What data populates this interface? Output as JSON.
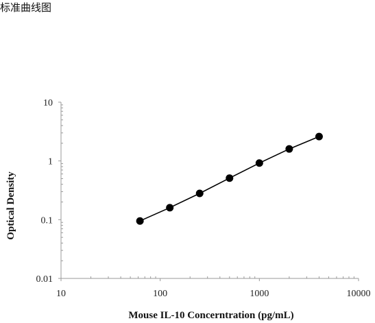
{
  "caption": "标准曲线图",
  "chart_data": {
    "type": "scatter",
    "title": "",
    "xlabel": "Mouse IL-10 Concerntration (pg/mL)",
    "ylabel": "Optical Density",
    "x_scale": "log",
    "y_scale": "log",
    "xlim": [
      10,
      10000
    ],
    "ylim": [
      0.01,
      10
    ],
    "x_ticks": [
      "10",
      "100",
      "1000",
      "10000"
    ],
    "y_ticks": [
      "0.01",
      "0.1",
      "1",
      "10"
    ],
    "grid": false,
    "trendline": true,
    "series": [
      {
        "x": [
          62.5,
          125,
          250,
          500,
          1000,
          2000,
          4000
        ],
        "y": [
          0.095,
          0.16,
          0.28,
          0.51,
          0.92,
          1.6,
          2.6
        ]
      }
    ],
    "colors": {
      "marker": "#000000",
      "line": "#000000",
      "axis": "#999999"
    }
  }
}
